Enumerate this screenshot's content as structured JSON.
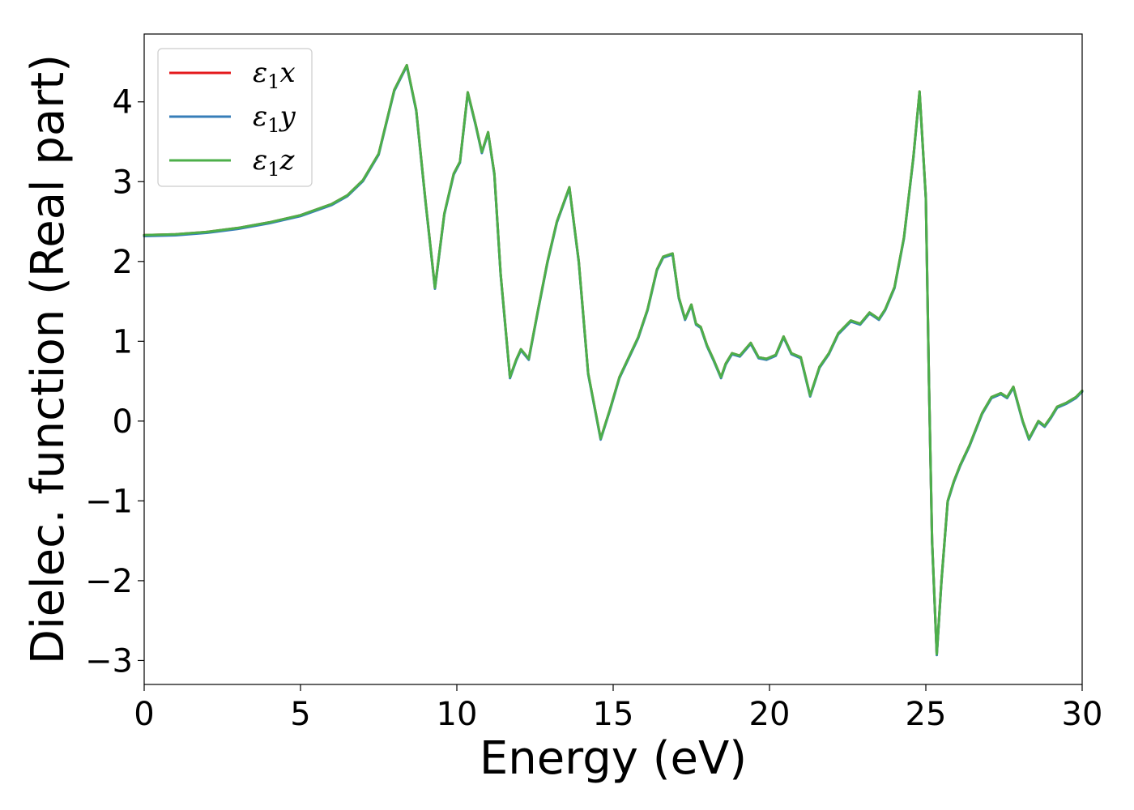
{
  "chart_data": {
    "type": "line",
    "xlabel": "Energy (eV)",
    "ylabel": "Dielec. function (Real part)",
    "xlim": [
      0,
      30
    ],
    "ylim": [
      -3.3,
      4.85
    ],
    "xticks": [
      0,
      5,
      10,
      15,
      20,
      25,
      30
    ],
    "xtick_labels": [
      "0",
      "5",
      "10",
      "15",
      "20",
      "25",
      "30"
    ],
    "yticks": [
      -3,
      -2,
      -1,
      0,
      1,
      2,
      3,
      4
    ],
    "ytick_labels": [
      "−3",
      "−2",
      "−1",
      "0",
      "1",
      "2",
      "3",
      "4"
    ],
    "grid": false,
    "legend_position": "upper-left",
    "series": [
      {
        "name": "ε₁x",
        "legend_base": "ε",
        "legend_sub": "1",
        "legend_var": "x",
        "color": "#e41a1c"
      },
      {
        "name": "ε₁y",
        "legend_base": "ε",
        "legend_sub": "1",
        "legend_var": "y",
        "color": "#377eb8"
      },
      {
        "name": "ε₁z",
        "legend_base": "ε",
        "legend_sub": "1",
        "legend_var": "z",
        "color": "#4daf4a"
      }
    ],
    "x": [
      0,
      1,
      2,
      3,
      4,
      5,
      6,
      6.5,
      7,
      7.5,
      8,
      8.4,
      8.7,
      9,
      9.3,
      9.6,
      9.9,
      10.1,
      10.35,
      10.6,
      10.8,
      11,
      11.2,
      11.4,
      11.7,
      11.9,
      12.05,
      12.3,
      12.6,
      12.9,
      13.2,
      13.6,
      13.9,
      14.2,
      14.6,
      14.9,
      15.2,
      15.5,
      15.8,
      16.1,
      16.4,
      16.6,
      16.9,
      17.1,
      17.3,
      17.5,
      17.65,
      17.8,
      18,
      18.2,
      18.45,
      18.6,
      18.8,
      19.05,
      19.4,
      19.65,
      19.9,
      20.2,
      20.45,
      20.7,
      21,
      21.3,
      21.6,
      21.9,
      22.2,
      22.6,
      22.9,
      23.2,
      23.5,
      23.7,
      24,
      24.3,
      24.6,
      24.8,
      25,
      25.1,
      25.2,
      25.35,
      25.5,
      25.7,
      25.9,
      26.1,
      26.4,
      26.8,
      27.1,
      27.4,
      27.6,
      27.8,
      28.1,
      28.3,
      28.6,
      28.8,
      29,
      29.2,
      29.5,
      29.8,
      30
    ],
    "values": [
      2.33,
      2.34,
      2.37,
      2.42,
      2.49,
      2.58,
      2.72,
      2.83,
      3.02,
      3.35,
      4.15,
      4.46,
      3.9,
      2.75,
      1.67,
      2.6,
      3.1,
      3.25,
      4.12,
      3.72,
      3.37,
      3.62,
      3.1,
      1.85,
      0.55,
      0.77,
      0.9,
      0.78,
      1.4,
      2.0,
      2.5,
      2.93,
      2.0,
      0.6,
      -0.22,
      0.15,
      0.55,
      0.8,
      1.05,
      1.4,
      1.9,
      2.06,
      2.1,
      1.55,
      1.28,
      1.46,
      1.22,
      1.18,
      0.95,
      0.78,
      0.55,
      0.72,
      0.85,
      0.82,
      0.98,
      0.8,
      0.78,
      0.83,
      1.06,
      0.85,
      0.8,
      0.32,
      0.68,
      0.85,
      1.1,
      1.26,
      1.22,
      1.36,
      1.28,
      1.4,
      1.68,
      2.3,
      3.3,
      4.13,
      2.8,
      0.5,
      -1.5,
      -2.92,
      -2.0,
      -1.0,
      -0.75,
      -0.55,
      -0.3,
      0.1,
      0.3,
      0.35,
      0.3,
      0.43,
      0.0,
      -0.22,
      0.0,
      -0.06,
      0.05,
      0.18,
      0.23,
      0.3,
      0.38
    ]
  }
}
